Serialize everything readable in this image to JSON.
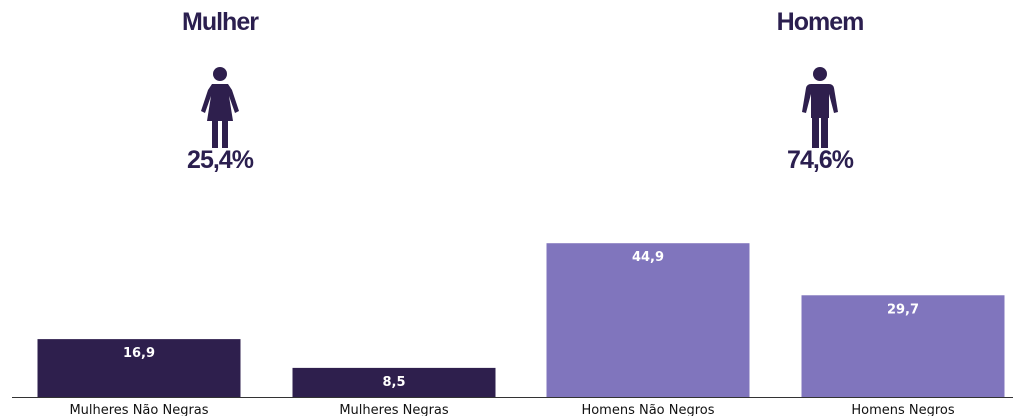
{
  "groups": [
    {
      "title": "Mulher",
      "percent": "25,4%",
      "icon": "woman-icon"
    },
    {
      "title": "Homem",
      "percent": "74,6%",
      "icon": "man-icon"
    }
  ],
  "colors": {
    "women": "#2e1f4d",
    "men": "#8075bd",
    "text_dark": "#2b1f4f",
    "label_light": "#ffffff",
    "axis": "#333333"
  },
  "chart_data": {
    "type": "bar",
    "categories": [
      "Mulheres Não Negras",
      "Mulheres Negras",
      "Homens Não Negros",
      "Homens Negros"
    ],
    "values": [
      16.9,
      8.5,
      44.9,
      29.7
    ],
    "value_labels": [
      "16,9",
      "8,5",
      "44,9",
      "29,7"
    ],
    "bar_colors": [
      "#2e1f4d",
      "#2e1f4d",
      "#8075bd",
      "#8075bd"
    ],
    "ylim": [
      0,
      50
    ],
    "grid": false,
    "legend": "none"
  }
}
